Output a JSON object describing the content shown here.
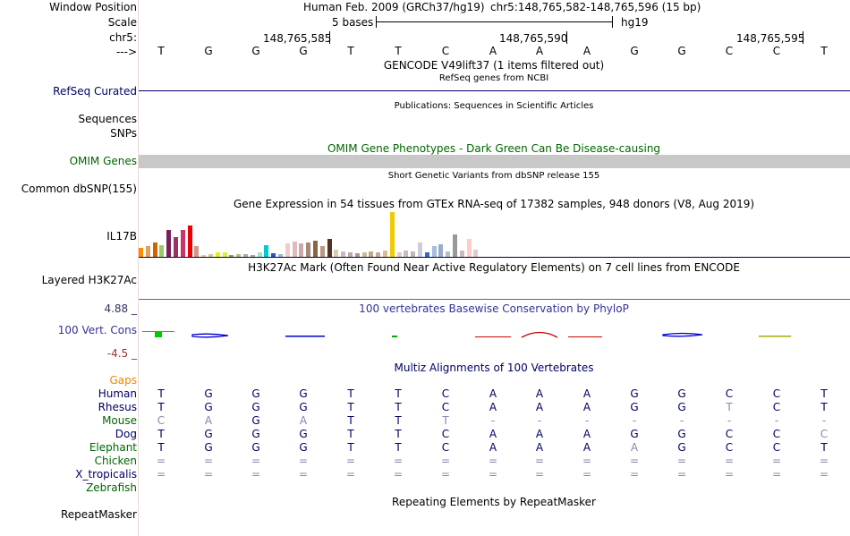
{
  "header": {
    "window_position_label": "Window Position",
    "scale_label": "Scale",
    "chrom_label": "chr5:",
    "arrow_label": "--->",
    "assembly_title": "Human Feb. 2009 (GRCh37/hg19)",
    "position": "chr5:148,765,582-148,765,596 (15 bp)",
    "scale_text": "5 bases",
    "scale_db": "hg19",
    "coords": [
      "148,765,585",
      "148,765,590",
      "148,765,595"
    ]
  },
  "sequence": [
    "T",
    "G",
    "G",
    "G",
    "T",
    "T",
    "C",
    "A",
    "A",
    "A",
    "G",
    "G",
    "C",
    "C",
    "T"
  ],
  "tracks": {
    "gencode_title": "GENCODE V49lift37 (1 items filtered out)",
    "refseq_sub": "RefSeq genes from NCBI",
    "refseq_label": "RefSeq Curated",
    "sequences_label": "Sequences",
    "publications_title": "Publications: Sequences in Scientific Articles",
    "snps_label": "SNPs",
    "omim_title": "OMIM Gene Phenotypes - Dark Green Can Be Disease-causing",
    "omim_label": "OMIM Genes",
    "dbsnp_title": "Short Genetic Variants from dbSNP release 155",
    "dbsnp_label": "Common dbSNP(155)",
    "gtex_title": "Gene Expression in 54 tissues from GTEx RNA-seq of 17382 samples, 948 donors (V8, Aug 2019)",
    "gtex_label": "IL17B",
    "h3k27_title": "H3K27Ac Mark (Often Found Near Active Regulatory Elements) on 7 cell lines from ENCODE",
    "h3k27_label": "Layered H3K27Ac",
    "cons_max": "4.88 _",
    "cons_title": "100 vertebrates Basewise Conservation by PhyloP",
    "cons_label": "100 Vert. Cons",
    "cons_min": "-4.5 _",
    "multiz_title": "Multiz Alignments of 100 Vertebrates",
    "gaps_label": "Gaps",
    "repeat_title": "Repeating Elements by RepeatMasker",
    "repeat_label": "RepeatMasker"
  },
  "gtex_bars": [
    {
      "h": 10,
      "c": "#ff8c00"
    },
    {
      "h": 12,
      "c": "#e0a060"
    },
    {
      "h": 16,
      "c": "#cc6600"
    },
    {
      "h": 13,
      "c": "#99cc66"
    },
    {
      "h": 30,
      "c": "#7a1f5c"
    },
    {
      "h": 22,
      "c": "#993366"
    },
    {
      "h": 30,
      "c": "#cc3366"
    },
    {
      "h": 35,
      "c": "#ee0000"
    },
    {
      "h": 12,
      "c": "#cc9988"
    },
    {
      "h": 2,
      "c": "#ddcc88"
    },
    {
      "h": 3,
      "c": "#cccc99"
    },
    {
      "h": 5,
      "c": "#eeee00"
    },
    {
      "h": 5,
      "c": "#ddee33"
    },
    {
      "h": 2,
      "c": "#999966"
    },
    {
      "h": 3,
      "c": "#bbbb77"
    },
    {
      "h": 3,
      "c": "#aaaaaa"
    },
    {
      "h": 2,
      "c": "#99aa99"
    },
    {
      "h": 5,
      "c": "#aaddcc"
    },
    {
      "h": 13,
      "c": "#00cccc"
    },
    {
      "h": 4,
      "c": "#2255cc"
    },
    {
      "h": 3,
      "c": "#99bbcc"
    },
    {
      "h": 15,
      "c": "#eecccc"
    },
    {
      "h": 17,
      "c": "#ddbbbb"
    },
    {
      "h": 15,
      "c": "#ccaaaa"
    },
    {
      "h": 16,
      "c": "#aa8877"
    },
    {
      "h": 18,
      "c": "#886644"
    },
    {
      "h": 12,
      "c": "#bb9988"
    },
    {
      "h": 20,
      "c": "#553322"
    },
    {
      "h": 8,
      "c": "#ddccaa"
    },
    {
      "h": 6,
      "c": "#ccbbbb"
    },
    {
      "h": 5,
      "c": "#bbaaaa"
    },
    {
      "h": 4,
      "c": "#aa9999"
    },
    {
      "h": 5,
      "c": "#ccbb99"
    },
    {
      "h": 6,
      "c": "#bbaa88"
    },
    {
      "h": 5,
      "c": "#ccaa99"
    },
    {
      "h": 7,
      "c": "#ddbb99"
    },
    {
      "h": 50,
      "c": "#eecc00"
    },
    {
      "h": 5,
      "c": "#ddcccc"
    },
    {
      "h": 7,
      "c": "#ccbbbb"
    },
    {
      "h": 6,
      "c": "#bbbbbb"
    },
    {
      "h": 16,
      "c": "#ccccdd"
    },
    {
      "h": 5,
      "c": "#3366cc"
    },
    {
      "h": 12,
      "c": "#aabbdd"
    },
    {
      "h": 14,
      "c": "#99aacc"
    },
    {
      "h": 6,
      "c": "#bbbbcc"
    },
    {
      "h": 25,
      "c": "#999999"
    },
    {
      "h": 7,
      "c": "#ccbbbb"
    },
    {
      "h": 20,
      "c": "#ffcccc"
    },
    {
      "h": 8,
      "c": "#ddcccc"
    }
  ],
  "alignment": [
    {
      "species": "Human",
      "color": "#000066",
      "bases": [
        "T",
        "G",
        "G",
        "G",
        "T",
        "T",
        "C",
        "A",
        "A",
        "A",
        "G",
        "G",
        "C",
        "C",
        "T"
      ],
      "grey": []
    },
    {
      "species": "Rhesus",
      "color": "#000066",
      "bases": [
        "T",
        "G",
        "G",
        "G",
        "T",
        "T",
        "C",
        "A",
        "A",
        "A",
        "G",
        "G",
        "T",
        "C",
        "T"
      ],
      "grey": [
        12
      ]
    },
    {
      "species": "Mouse",
      "color": "#006600",
      "bases": [
        "C",
        "A",
        "G",
        "A",
        "T",
        "T",
        "T",
        "-",
        "-",
        "-",
        "-",
        "-",
        "-",
        "-",
        "-"
      ],
      "grey": [
        0,
        1,
        3,
        6,
        7,
        8,
        9,
        10,
        11,
        12,
        13,
        14
      ]
    },
    {
      "species": "Dog",
      "color": "#000066",
      "bases": [
        "T",
        "G",
        "G",
        "G",
        "T",
        "T",
        "C",
        "A",
        "A",
        "A",
        "G",
        "G",
        "C",
        "C",
        "C"
      ],
      "grey": [
        14
      ]
    },
    {
      "species": "Elephant",
      "color": "#006600",
      "bases": [
        "T",
        "G",
        "G",
        "G",
        "T",
        "T",
        "C",
        "A",
        "A",
        "A",
        "A",
        "G",
        "C",
        "C",
        "T"
      ],
      "grey": [
        10
      ]
    },
    {
      "species": "Chicken",
      "color": "#006600",
      "bases": [
        "=",
        "=",
        "=",
        "=",
        "=",
        "=",
        "=",
        "=",
        "=",
        "=",
        "=",
        "=",
        "=",
        "=",
        "="
      ],
      "grey": [
        0,
        1,
        2,
        3,
        4,
        5,
        6,
        7,
        8,
        9,
        10,
        11,
        12,
        13,
        14
      ]
    },
    {
      "species": "X_tropicalis",
      "color": "#000066",
      "bases": [
        "=",
        "=",
        "=",
        "=",
        "=",
        "=",
        "=",
        "=",
        "=",
        "=",
        "=",
        "=",
        "=",
        "=",
        "="
      ],
      "grey": [
        0,
        1,
        2,
        3,
        4,
        5,
        6,
        7,
        8,
        9,
        10,
        11,
        12,
        13,
        14
      ]
    },
    {
      "species": "Zebrafish",
      "color": "#006600",
      "bases": [],
      "grey": []
    }
  ]
}
